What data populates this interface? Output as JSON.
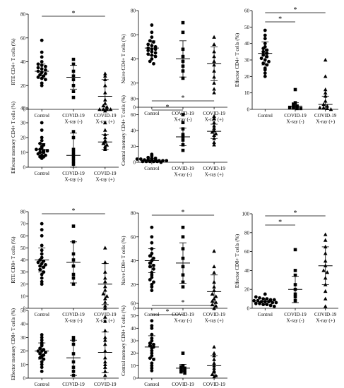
{
  "chart_data": [
    {
      "type": "scatter",
      "ylabel": "RTE CD4+ T cells (%)",
      "ylim": [
        0,
        80
      ],
      "yticks": [
        0,
        20,
        40,
        60,
        80
      ],
      "categories": [
        "Control",
        "COVID-19\nX-ray (-)",
        "COVID-19\nX-ray (+)"
      ],
      "markers": [
        "circle",
        "square",
        "triangle"
      ],
      "groups": [
        {
          "mean": 32,
          "sd": 6,
          "values": [
            58,
            48,
            44,
            40,
            38,
            37,
            36,
            35,
            34,
            33,
            32,
            31,
            30,
            29,
            28,
            27,
            26,
            25,
            22,
            20
          ]
        },
        {
          "mean": 27,
          "sd": 10,
          "values": [
            42,
            38,
            32,
            28,
            25,
            20,
            15,
            10
          ]
        },
        {
          "mean": 11,
          "sd": 14,
          "values": [
            30,
            28,
            25,
            20,
            14,
            8,
            5,
            3,
            2,
            0,
            0,
            0,
            0
          ]
        }
      ],
      "sig": [
        {
          "from": 0,
          "to": 2,
          "label": "*"
        }
      ]
    },
    {
      "type": "scatter",
      "ylabel": "Naive CD4+ T cells (%)",
      "ylim": [
        0,
        80
      ],
      "yticks": [
        0,
        20,
        40,
        60,
        80
      ],
      "categories": [
        "Control",
        "COVID-19\nX-ray (-)",
        "COVID-19\nX-ray (+)"
      ],
      "markers": [
        "circle",
        "square",
        "triangle"
      ],
      "groups": [
        {
          "mean": 49,
          "sd": 6,
          "values": [
            68,
            62,
            58,
            55,
            54,
            52,
            51,
            50,
            49,
            48,
            48,
            47,
            46,
            45,
            44,
            43,
            42,
            40,
            38,
            36
          ]
        },
        {
          "mean": 40,
          "sd": 15,
          "values": [
            70,
            62,
            48,
            42,
            38,
            34,
            30,
            24
          ]
        },
        {
          "mean": 36,
          "sd": 14,
          "values": [
            58,
            52,
            46,
            42,
            38,
            35,
            30,
            25,
            20,
            15,
            12
          ]
        }
      ],
      "sig": []
    },
    {
      "type": "scatter",
      "ylabel": "Effector CD4+ T cells (%)",
      "ylim": [
        0,
        60
      ],
      "yticks": [
        0,
        10,
        20,
        30,
        40,
        50,
        60
      ],
      "categories": [
        "Control",
        "COVID-19\nX-ray (-)",
        "COVID-19\nX-ray (+)"
      ],
      "markers": [
        "circle",
        "square",
        "triangle"
      ],
      "groups": [
        {
          "mean": 34,
          "sd": 7,
          "values": [
            48,
            45,
            43,
            40,
            38,
            37,
            36,
            35,
            34,
            33,
            32,
            31,
            30,
            29,
            28,
            27,
            25,
            24,
            22,
            20
          ]
        },
        {
          "mean": 2,
          "sd": 2,
          "values": [
            12,
            4,
            3,
            2,
            1,
            1,
            0.5,
            0.5
          ]
        },
        {
          "mean": 3,
          "sd": 5,
          "values": [
            30,
            20,
            12,
            10,
            8,
            5,
            3,
            2,
            1,
            1,
            0.5,
            0
          ]
        }
      ],
      "sig": [
        {
          "from": 0,
          "to": 1,
          "label": "*"
        },
        {
          "from": 0,
          "to": 2,
          "label": "*"
        }
      ]
    },
    {
      "type": "scatter",
      "ylabel": "Effector memory CD4+ T cells (%)",
      "ylim": [
        0,
        40
      ],
      "yticks": [
        0,
        10,
        20,
        30,
        40
      ],
      "categories": [
        "Control",
        "COVID-19\nX-ray (-)",
        "COVID-19\nX-ray (+)"
      ],
      "markers": [
        "circle",
        "square",
        "triangle"
      ],
      "groups": [
        {
          "mean": 12,
          "sd": 4,
          "values": [
            30,
            25,
            20,
            18,
            16,
            15,
            14,
            13,
            12,
            12,
            11,
            11,
            10,
            10,
            9,
            8,
            8,
            7,
            7,
            6
          ]
        },
        {
          "mean": 8,
          "sd": 15,
          "values": [
            24,
            20,
            12,
            10,
            8,
            6,
            4,
            2
          ]
        },
        {
          "mean": 17,
          "sd": 5,
          "values": [
            38,
            30,
            25,
            22,
            20,
            18,
            17,
            16,
            15,
            14,
            13,
            12
          ]
        }
      ],
      "sig": []
    },
    {
      "type": "scatter",
      "ylabel": "Central memory CD4+ T cells (%)",
      "ylim": [
        0,
        80
      ],
      "yticks": [
        0,
        20,
        40,
        60,
        80
      ],
      "categories": [
        "Control",
        "COVID-19\nX-ray (-)",
        "COVID-19\nX-ray (+)"
      ],
      "markers": [
        "circle",
        "square",
        "triangle"
      ],
      "groups": [
        {
          "mean": 3,
          "sd": 2,
          "values": [
            10,
            8,
            6,
            5,
            5,
            4,
            4,
            3,
            3,
            3,
            2,
            2,
            2,
            2,
            1,
            1,
            1,
            1,
            1,
            0
          ]
        },
        {
          "mean": 32,
          "sd": 11,
          "values": [
            60,
            50,
            42,
            35,
            32,
            28,
            22,
            15
          ]
        },
        {
          "mean": 39,
          "sd": 9,
          "values": [
            58,
            55,
            50,
            46,
            43,
            40,
            38,
            36,
            34,
            30,
            25,
            22
          ]
        }
      ],
      "sig": [
        {
          "from": 0,
          "to": 1,
          "label": "*"
        },
        {
          "from": 0,
          "to": 2,
          "label": "*"
        }
      ]
    },
    {
      "type": "scatter",
      "ylabel": "RTE CD8+ T cells (%)",
      "ylim": [
        0,
        80
      ],
      "yticks": [
        0,
        10,
        20,
        30,
        40,
        50,
        60,
        70,
        80
      ],
      "categories": [
        "Control",
        "COVID-19\nX-ray (-)",
        "COVID-19\nX-ray (+)"
      ],
      "markers": [
        "circle",
        "square",
        "triangle"
      ],
      "groups": [
        {
          "mean": 40,
          "sd": 10,
          "values": [
            70,
            65,
            60,
            52,
            48,
            45,
            42,
            40,
            39,
            38,
            37,
            36,
            35,
            34,
            32,
            30,
            28,
            25,
            22,
            20
          ]
        },
        {
          "mean": 38,
          "sd": 17,
          "values": [
            68,
            55,
            45,
            40,
            35,
            28,
            25,
            20
          ]
        },
        {
          "mean": 20,
          "sd": 17,
          "values": [
            50,
            38,
            30,
            25,
            22,
            18,
            15,
            12,
            10,
            8,
            5,
            2,
            0
          ]
        }
      ],
      "sig": [
        {
          "from": 0,
          "to": 2,
          "label": "*"
        }
      ]
    },
    {
      "type": "scatter",
      "ylabel": "Naive CD8+ T cells (%)",
      "ylim": [
        0,
        80
      ],
      "yticks": [
        0,
        20,
        40,
        60,
        80
      ],
      "categories": [
        "Control",
        "COVID-19\nX-ray (-)",
        "COVID-19\nX-ray (+)"
      ],
      "markers": [
        "circle",
        "square",
        "triangle"
      ],
      "groups": [
        {
          "mean": 40,
          "sd": 10,
          "values": [
            68,
            60,
            55,
            50,
            46,
            44,
            42,
            40,
            38,
            36,
            35,
            33,
            30,
            28,
            26,
            24,
            22,
            20,
            18,
            15
          ]
        },
        {
          "mean": 38,
          "sd": 17,
          "values": [
            68,
            60,
            50,
            42,
            35,
            28,
            22,
            18
          ]
        },
        {
          "mean": 14,
          "sd": 14,
          "values": [
            48,
            35,
            30,
            22,
            18,
            15,
            12,
            10,
            8,
            6,
            5,
            3,
            2,
            0
          ]
        }
      ],
      "sig": [
        {
          "from": 0,
          "to": 2,
          "label": "*"
        }
      ]
    },
    {
      "type": "scatter",
      "ylabel": "Effector CD8+ T cells (%)",
      "ylim": [
        0,
        100
      ],
      "yticks": [
        0,
        20,
        40,
        60,
        80,
        100
      ],
      "categories": [
        "Control",
        "COVID-19\nX-ray (-)",
        "COVID-19\nX-ray (+)"
      ],
      "markers": [
        "circle",
        "square",
        "triangle"
      ],
      "groups": [
        {
          "mean": 7,
          "sd": 3,
          "values": [
            15,
            12,
            11,
            10,
            10,
            9,
            9,
            8,
            8,
            7,
            7,
            7,
            6,
            6,
            5,
            5,
            4,
            4,
            3,
            2
          ]
        },
        {
          "mean": 20,
          "sd": 14,
          "values": [
            62,
            40,
            35,
            25,
            20,
            15,
            12,
            8
          ]
        },
        {
          "mean": 45,
          "sd": 20,
          "values": [
            78,
            72,
            65,
            58,
            50,
            45,
            40,
            38,
            32,
            25,
            18,
            10,
            2
          ]
        }
      ],
      "sig": [
        {
          "from": 0,
          "to": 1,
          "label": "*"
        },
        {
          "from": 0,
          "to": 2,
          "label": "*"
        }
      ]
    },
    {
      "type": "scatter",
      "ylabel": "Effector memory CD8+ T cells (%)",
      "ylim": [
        0,
        50
      ],
      "yticks": [
        0,
        10,
        20,
        30,
        40,
        50
      ],
      "categories": [
        "Control",
        "COVID-19\nX-ray (-)",
        "COVID-19\nX-ray (+)"
      ],
      "markers": [
        "circle",
        "square",
        "triangle"
      ],
      "groups": [
        {
          "mean": 20,
          "sd": 6,
          "values": [
            32,
            30,
            28,
            26,
            25,
            24,
            22,
            21,
            20,
            20,
            19,
            18,
            17,
            16,
            15,
            14,
            12,
            10,
            8,
            5
          ]
        },
        {
          "mean": 15,
          "sd": 13,
          "values": [
            30,
            28,
            25,
            18,
            12,
            8,
            5,
            2
          ]
        },
        {
          "mean": 19,
          "sd": 15,
          "values": [
            45,
            42,
            35,
            30,
            28,
            25,
            20,
            15,
            12,
            10,
            8,
            5,
            2
          ]
        }
      ],
      "sig": []
    },
    {
      "type": "scatter",
      "ylabel": "Central memory CD8+ T cells (%)",
      "ylim": [
        0,
        60
      ],
      "yticks": [
        0,
        10,
        20,
        30,
        40,
        50,
        60
      ],
      "categories": [
        "Control",
        "COVID-19\nX-ray (-)",
        "COVID-19\nX-ray (+)"
      ],
      "markers": [
        "circle",
        "square",
        "triangle"
      ],
      "groups": [
        {
          "mean": 25,
          "sd": 9,
          "values": [
            46,
            42,
            40,
            35,
            32,
            30,
            28,
            27,
            26,
            25,
            24,
            22,
            20,
            18,
            16,
            15,
            12,
            10,
            8,
            6
          ]
        },
        {
          "mean": 8,
          "sd": 3,
          "values": [
            20,
            10,
            9,
            8,
            7,
            6,
            5,
            4
          ]
        },
        {
          "mean": 10,
          "sd": 8,
          "values": [
            25,
            20,
            18,
            15,
            12,
            10,
            8,
            6,
            5,
            3,
            2,
            1
          ]
        }
      ],
      "sig": [
        {
          "from": 0,
          "to": 1,
          "label": "*"
        },
        {
          "from": 0,
          "to": 2,
          "label": "*"
        }
      ]
    }
  ]
}
